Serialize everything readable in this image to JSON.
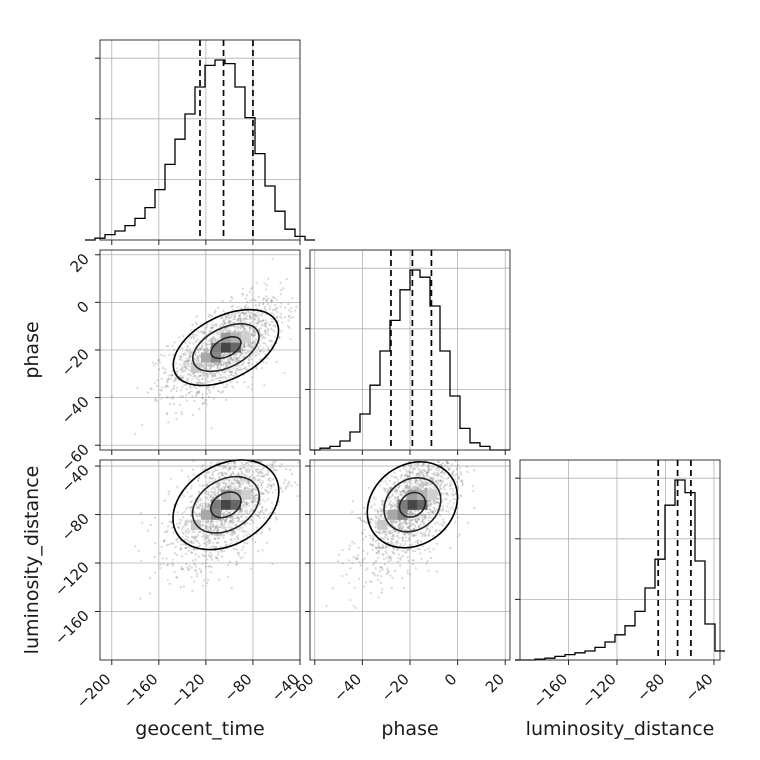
{
  "chart_data": {
    "type": "corner",
    "parameters": [
      "geocent_time",
      "phase",
      "luminosity_distance"
    ],
    "grid": true,
    "ranges": {
      "geocent_time": [
        -210,
        -40
      ],
      "phase": [
        -62,
        22
      ],
      "luminosity_distance": [
        -200,
        -35
      ]
    },
    "ticks": {
      "geocent_time": {
        "values": [
          -200,
          -160,
          -120,
          -80,
          -40
        ],
        "labels": [
          "−200",
          "−160",
          "−120",
          "−80",
          "−40"
        ]
      },
      "phase": {
        "values": [
          -60,
          -40,
          -20,
          0,
          20
        ],
        "labels": [
          "−60",
          "−40",
          "−20",
          "0",
          "20"
        ]
      },
      "luminosity_distance_y": {
        "values": [
          -160,
          -120,
          -80,
          -40
        ],
        "labels": [
          "−160",
          "−120",
          "−80",
          "−40"
        ]
      },
      "luminosity_distance_x": {
        "values": [
          -160,
          -120,
          -80,
          -40
        ],
        "labels": [
          "−160",
          "−120",
          "−80",
          "−40"
        ]
      }
    },
    "histograms": {
      "geocent_time": {
        "bin_width": 8.5,
        "counts": [
          0.0,
          0.01,
          0.03,
          0.05,
          0.08,
          0.12,
          0.18,
          0.28,
          0.42,
          0.56,
          0.7,
          0.85,
          0.97,
          1.0,
          0.98,
          0.85,
          0.68,
          0.48,
          0.3,
          0.16,
          0.06,
          0.02,
          0.0
        ],
        "quantiles": [
          -125,
          -105,
          -80
        ]
      },
      "phase": {
        "bin_width": 4.2,
        "counts": [
          0.0,
          0.01,
          0.02,
          0.05,
          0.1,
          0.2,
          0.36,
          0.55,
          0.72,
          0.89,
          1.0,
          0.96,
          0.8,
          0.55,
          0.3,
          0.12,
          0.04,
          0.02,
          0.0,
          0.0
        ],
        "quantiles": [
          -28,
          -19,
          -11
        ]
      },
      "luminosity_distance": {
        "bin_width": 8.25,
        "counts": [
          0.0,
          0.0,
          0.005,
          0.01,
          0.02,
          0.03,
          0.04,
          0.05,
          0.07,
          0.1,
          0.14,
          0.19,
          0.27,
          0.4,
          0.56,
          0.86,
          1.0,
          0.93,
          0.55,
          0.2,
          0.05
        ],
        "quantiles": [
          -86,
          -70,
          -59
        ]
      }
    },
    "pairs": [
      {
        "x": "geocent_time",
        "y": "phase",
        "mean": [
          -103,
          -19
        ],
        "sigma": [
          24,
          10
        ],
        "rho": 0.6
      },
      {
        "x": "geocent_time",
        "y": "luminosity_distance",
        "mean": [
          -103,
          -72
        ],
        "sigma": [
          24,
          25
        ],
        "rho": 0.55
      },
      {
        "x": "phase",
        "y": "luminosity_distance",
        "mean": [
          -19,
          -72
        ],
        "sigma": [
          10,
          25
        ],
        "rho": 0.6
      }
    ],
    "xlabels": [
      "geocent_time",
      "phase",
      "luminosity_distance"
    ],
    "ylabels": [
      "",
      "phase",
      "luminosity_distance"
    ]
  }
}
